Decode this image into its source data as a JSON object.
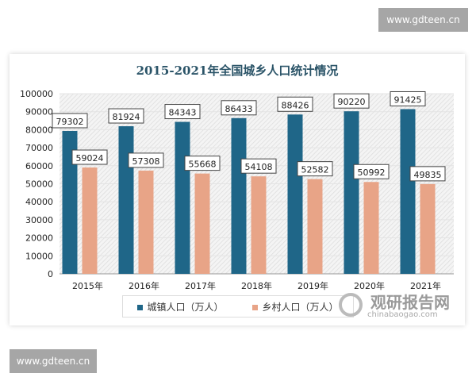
{
  "watermarks": {
    "top": "www.gdteen.cn",
    "bottom": "www.gdteen.cn",
    "logo_cn": "观研报告网",
    "logo_en": "chinabaogao.com"
  },
  "chart_data": {
    "type": "bar",
    "title": "2015-2021年全国城乡人口统计情况",
    "categories": [
      "2015年",
      "2016年",
      "2017年",
      "2018年",
      "2019年",
      "2020年",
      "2021年"
    ],
    "series": [
      {
        "name": "城镇人口（万人）",
        "color": "#1f6688",
        "values": [
          79302,
          81924,
          84343,
          86433,
          88426,
          90220,
          91425
        ]
      },
      {
        "name": "乡村人口（万人）",
        "color": "#e8a487",
        "values": [
          59024,
          57308,
          55668,
          54108,
          52582,
          50992,
          49835
        ]
      }
    ],
    "ylim": [
      0,
      100000
    ],
    "yticks": [
      0,
      10000,
      20000,
      30000,
      40000,
      50000,
      60000,
      70000,
      80000,
      90000,
      100000
    ],
    "grid": true,
    "legend": "bottom",
    "data_labels": true
  }
}
